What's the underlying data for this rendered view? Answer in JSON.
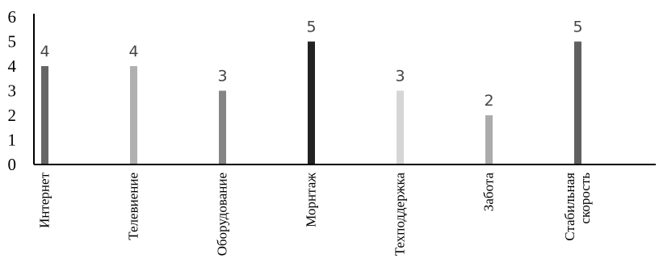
{
  "chart_data": {
    "type": "bar",
    "categories": [
      "Интернет",
      "Телевиение",
      "Оборудование",
      "Морнтаж",
      "Техподдержка",
      "Забота",
      "Стабильная скорость"
    ],
    "category_lines": [
      [
        "Интернет"
      ],
      [
        "Телевиение"
      ],
      [
        "Оборудование"
      ],
      [
        "Морнтаж"
      ],
      [
        "Техподдержка"
      ],
      [
        "Забота"
      ],
      [
        "Стабильная",
        "скорость"
      ]
    ],
    "values": [
      4,
      4,
      3,
      5,
      3,
      2,
      5
    ],
    "colors": [
      "#666666",
      "#b0b0b0",
      "#858585",
      "#222222",
      "#d6d6d6",
      "#ababab",
      "#606060"
    ],
    "ylim": [
      0,
      6
    ],
    "yticks": [
      0,
      1,
      2,
      3,
      4,
      5,
      6
    ],
    "data_labels": true,
    "grid": false,
    "legend": "none"
  }
}
